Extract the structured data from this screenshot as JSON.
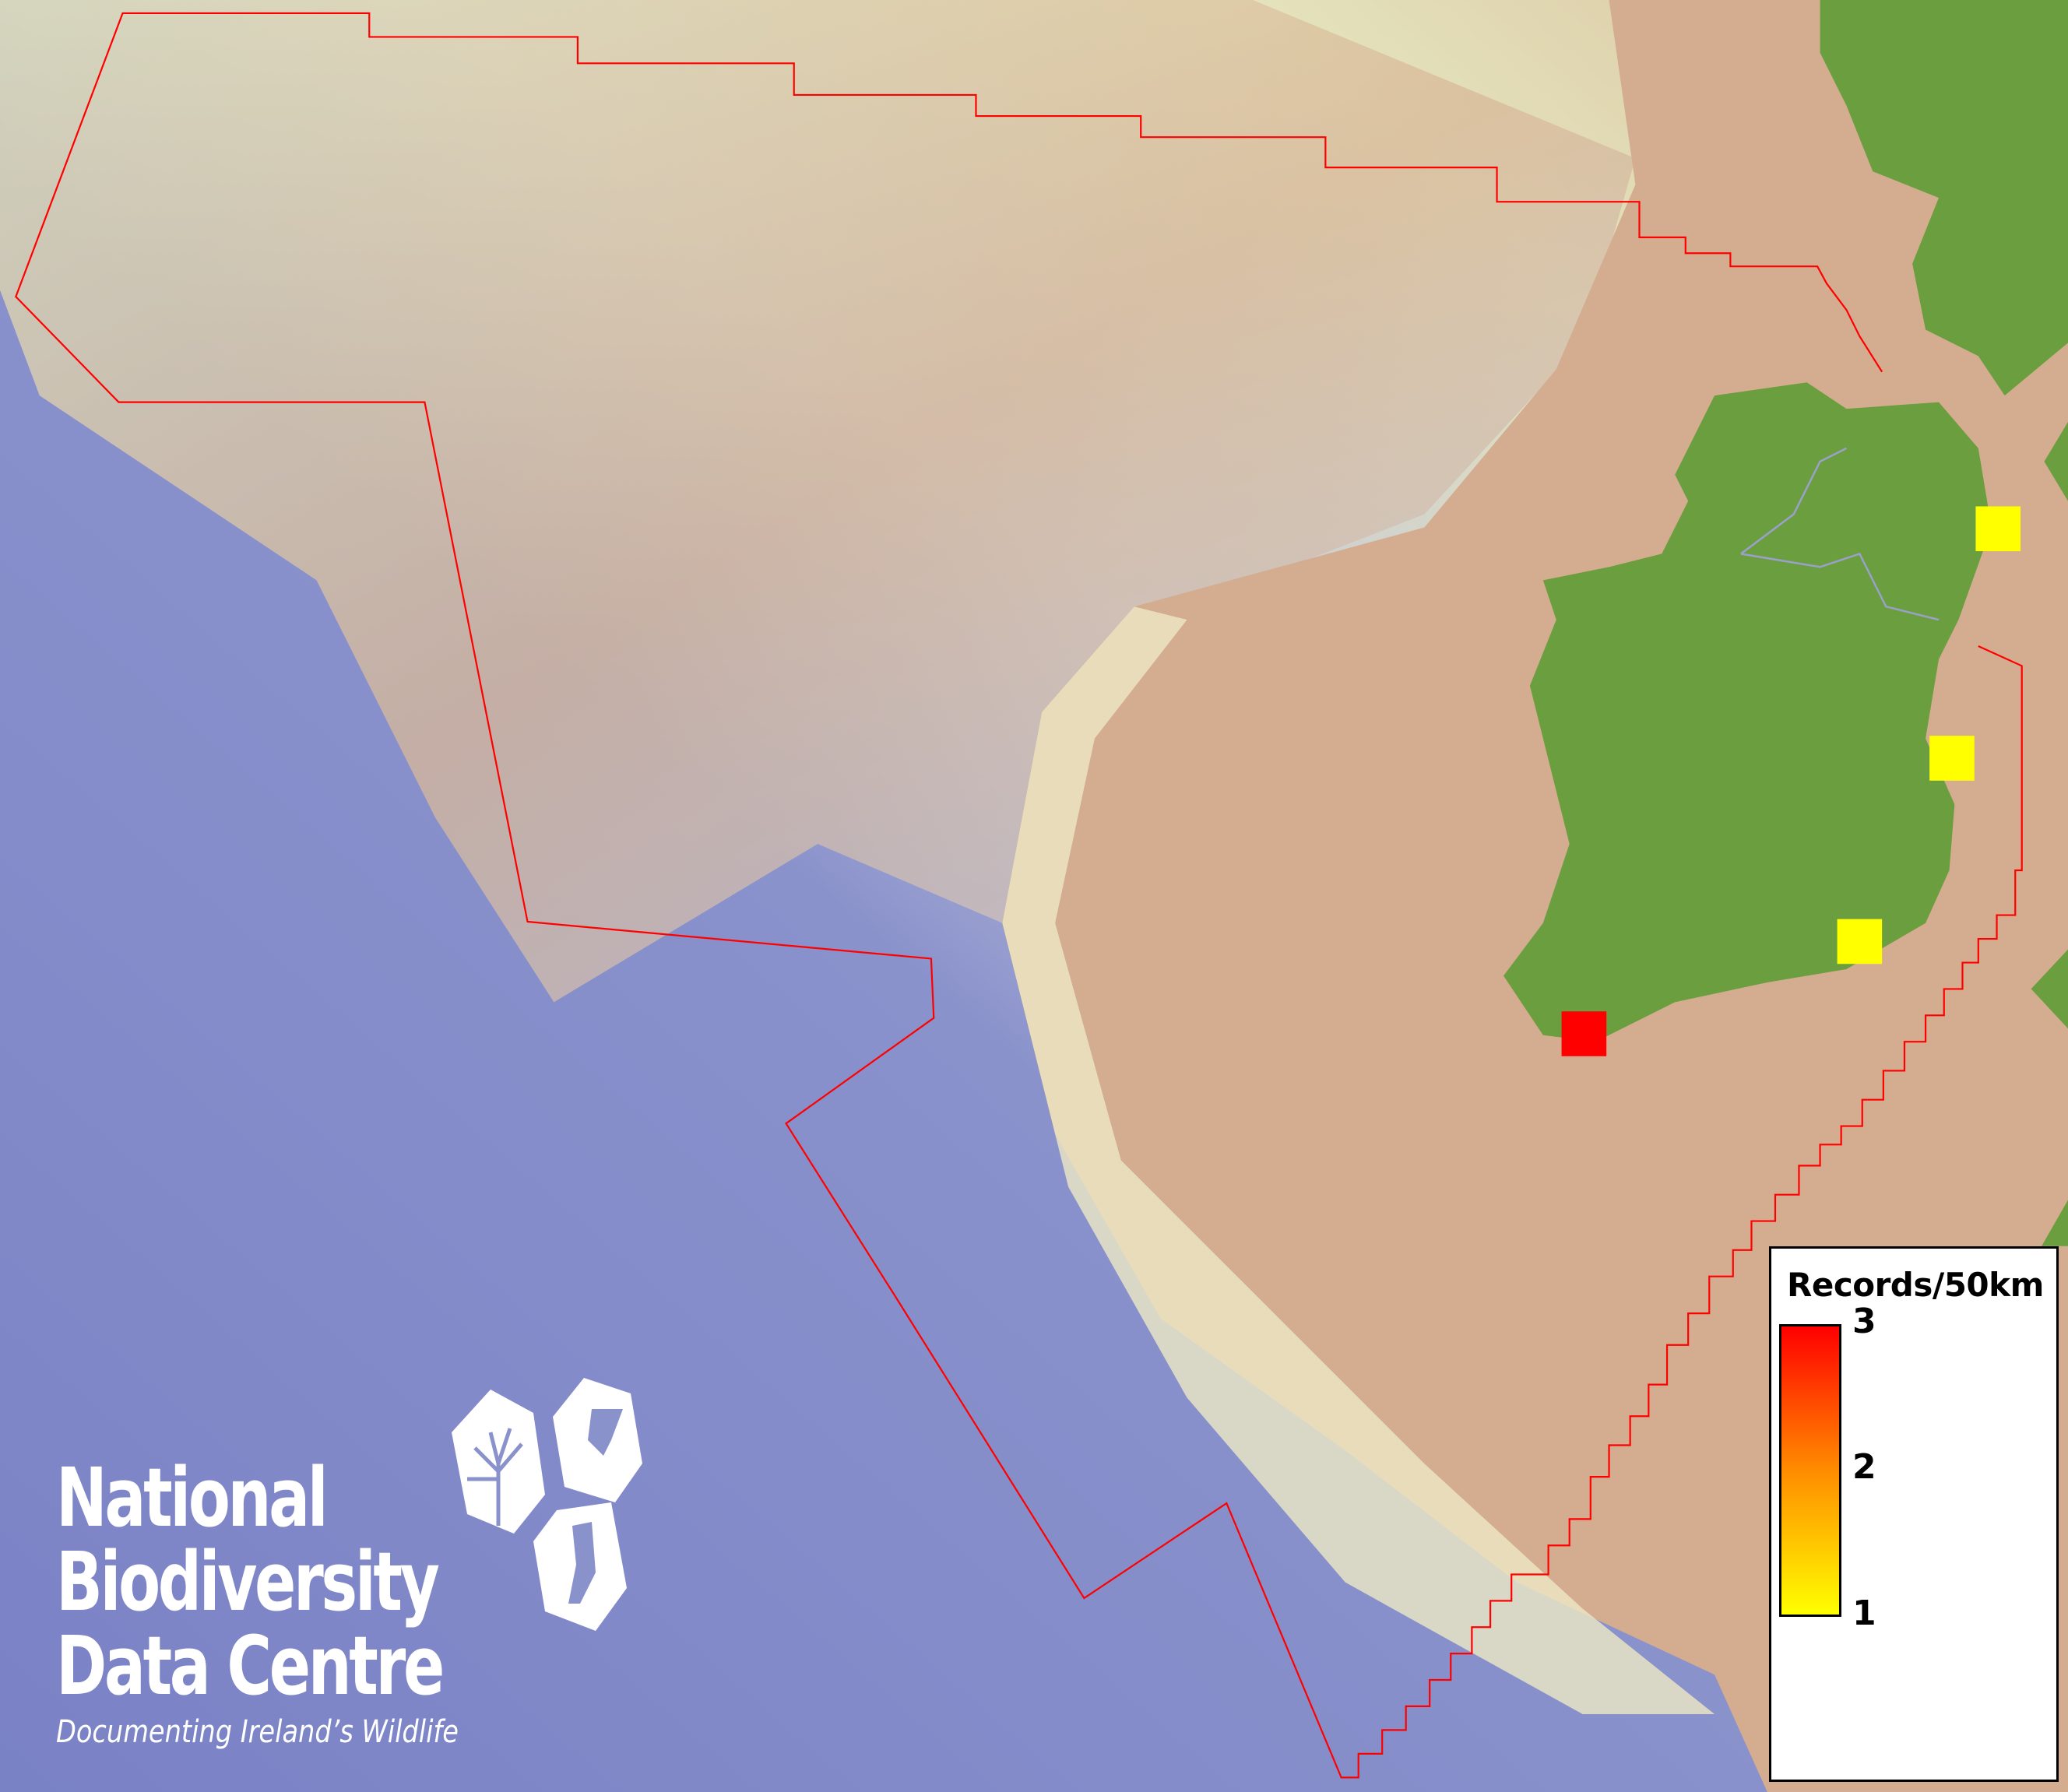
{
  "map": {
    "colors": {
      "deep_sea": "#7f86c8",
      "shelf_shallow": "#e6e6b8",
      "shelf_mid": "#c8c8d8",
      "land_tan": "#d2aa8e",
      "land_green": "#6a9e3e",
      "boundary": "#ff0000"
    },
    "records": [
      {
        "records": 1,
        "color": "#ffff00"
      },
      {
        "records": 1,
        "color": "#ffff00"
      },
      {
        "records": 1,
        "color": "#ffff00"
      },
      {
        "records": 3,
        "color": "#ff0000"
      }
    ]
  },
  "legend": {
    "title": "Records/50km",
    "max_label": "3",
    "mid_label": "2",
    "min_label": "1",
    "color_min": "#ffff00",
    "color_mid": "#ff8c00",
    "color_max": "#ff0000"
  },
  "logo": {
    "line1": "National",
    "line2": "Biodiversity",
    "line3": "Data Centre",
    "tagline": "Documenting Ireland’s Wildlife"
  }
}
